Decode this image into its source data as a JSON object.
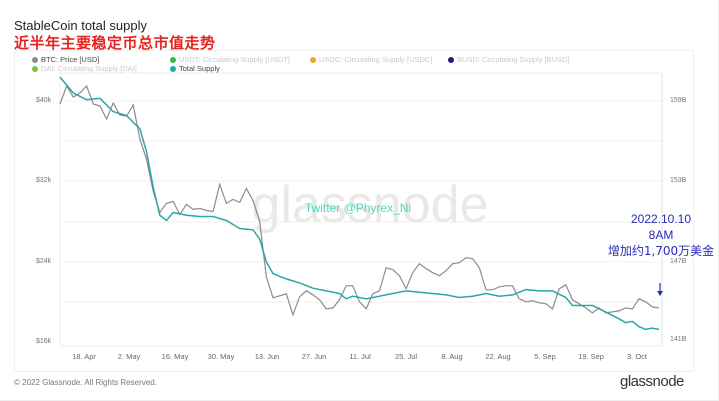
{
  "header": {
    "title": "StableCoin total supply",
    "subtitle": "近半年主要稳定币总市值走势"
  },
  "legend": [
    {
      "label": "BTC: Price [USD]",
      "color": "#8c8c8c",
      "active": true
    },
    {
      "label": "USDT: Circulating Supply [USDT]",
      "color": "#39b54a",
      "active": false
    },
    {
      "label": "USDC: Circulating Supply [USDC]",
      "color": "#f0a820",
      "active": false
    },
    {
      "label": "BUSD: Circulating Supply [BUSD]",
      "color": "#1a1a8c",
      "active": false
    },
    {
      "label": "DAI: Circulating Supply [DAI]",
      "color": "#7dc242",
      "active": false
    },
    {
      "label": "Total Supply",
      "color": "#2aa7a7",
      "active": true
    }
  ],
  "watermark": "glassnode",
  "overlay_text": "Twitter @Phyrex_Ni",
  "annotation": {
    "line1": "2022.10.10",
    "line2": "8AM",
    "line3": "增加约1,700万美金",
    "arrow": "down-arrow-icon"
  },
  "footer": {
    "copyright": "© 2022 Glassnode. All Rights Reserved.",
    "brand": "glassnode"
  },
  "chart_data": {
    "type": "line",
    "title": "StableCoin total supply",
    "subtitle": "近半年主要稳定币总市值走势",
    "x_tick_labels": [
      "18. Apr",
      "2. May",
      "16. May",
      "30. May",
      "13. Jun",
      "27. Jun",
      "11. Jul",
      "25. Jul",
      "8. Aug",
      "22. Aug",
      "5. Sep",
      "19. Sep",
      "3. Oct"
    ],
    "y_left": {
      "label": "BTC Price (USD)",
      "ticks": [
        "$16k",
        "$24k",
        "$32k",
        "$40k"
      ],
      "range": [
        16000,
        43000
      ]
    },
    "y_right": {
      "label": "Total Supply",
      "ticks": [
        "141B",
        "147B",
        "153B",
        "159B"
      ],
      "range": [
        141000000000,
        161000000000
      ]
    },
    "grid": true,
    "legend_position": "top",
    "x_range": [
      "2022-04-12",
      "2022-10-10"
    ],
    "series": [
      {
        "name": "BTC: Price [USD]",
        "axis": "left",
        "color": "#8c8c8c",
        "x": [
          "04-12",
          "04-14",
          "04-16",
          "04-18",
          "04-20",
          "04-22",
          "04-24",
          "04-26",
          "04-28",
          "04-30",
          "05-02",
          "05-04",
          "05-06",
          "05-08",
          "05-10",
          "05-12",
          "05-14",
          "05-16",
          "05-18",
          "05-20",
          "05-22",
          "05-24",
          "05-26",
          "05-28",
          "05-30",
          "06-01",
          "06-03",
          "06-05",
          "06-07",
          "06-09",
          "06-11",
          "06-13",
          "06-15",
          "06-17",
          "06-19",
          "06-21",
          "06-23",
          "06-25",
          "06-27",
          "06-29",
          "07-01",
          "07-03",
          "07-05",
          "07-07",
          "07-09",
          "07-11",
          "07-13",
          "07-15",
          "07-17",
          "07-19",
          "07-21",
          "07-23",
          "07-25",
          "07-27",
          "07-29",
          "07-31",
          "08-02",
          "08-04",
          "08-06",
          "08-08",
          "08-10",
          "08-12",
          "08-14",
          "08-16",
          "08-18",
          "08-20",
          "08-22",
          "08-24",
          "08-26",
          "08-28",
          "08-30",
          "09-01",
          "09-03",
          "09-05",
          "09-07",
          "09-09",
          "09-11",
          "09-13",
          "09-15",
          "09-17",
          "09-19",
          "09-21",
          "09-23",
          "09-25",
          "09-27",
          "09-29",
          "10-01",
          "10-03",
          "10-05",
          "10-07",
          "10-09"
        ],
        "values": [
          39700,
          41500,
          40400,
          40800,
          41500,
          39700,
          39500,
          38200,
          39800,
          38600,
          38500,
          39600,
          36200,
          34200,
          31000,
          28900,
          29800,
          30000,
          28700,
          29700,
          29200,
          29300,
          29100,
          29000,
          31700,
          29800,
          30200,
          29900,
          31300,
          30100,
          28000,
          22500,
          20400,
          20600,
          20800,
          18700,
          20500,
          21100,
          20700,
          20200,
          19300,
          19400,
          20200,
          21600,
          21600,
          20000,
          19300,
          20800,
          21100,
          23400,
          23200,
          22600,
          21300,
          22900,
          23800,
          23300,
          22900,
          22600,
          23100,
          23800,
          23900,
          24400,
          24300,
          23400,
          21200,
          21200,
          21500,
          21600,
          21600,
          20300,
          20000,
          20100,
          19900,
          19800,
          19300,
          21300,
          21700,
          20200,
          19800,
          19400,
          18900,
          19400,
          18900,
          19000,
          19100,
          19400,
          19300,
          20300,
          20000,
          19500,
          19400
        ]
      },
      {
        "name": "Total Supply",
        "axis": "right",
        "color": "#2aa7a7",
        "x": [
          "04-12",
          "04-16",
          "04-20",
          "04-24",
          "04-28",
          "05-02",
          "05-06",
          "05-08",
          "05-10",
          "05-12",
          "05-14",
          "05-16",
          "05-20",
          "05-24",
          "05-28",
          "06-01",
          "06-05",
          "06-09",
          "06-11",
          "06-13",
          "06-15",
          "06-17",
          "06-19",
          "06-23",
          "06-27",
          "07-01",
          "07-05",
          "07-07",
          "07-09",
          "07-13",
          "07-17",
          "07-21",
          "07-25",
          "07-29",
          "08-02",
          "08-06",
          "08-10",
          "08-14",
          "08-18",
          "08-22",
          "08-26",
          "08-30",
          "09-03",
          "09-07",
          "09-11",
          "09-13",
          "09-15",
          "09-19",
          "09-23",
          "09-27",
          "09-29",
          "10-01",
          "10-03",
          "10-05",
          "10-07",
          "10-09"
        ],
        "values": [
          160800,
          159600,
          159100,
          159200,
          158200,
          157900,
          156900,
          155200,
          152500,
          150400,
          150000,
          150600,
          150400,
          150300,
          150300,
          150000,
          149400,
          149300,
          148600,
          146900,
          146000,
          145800,
          145600,
          145300,
          144900,
          144700,
          144500,
          144100,
          144300,
          144100,
          144300,
          144500,
          144700,
          144600,
          144500,
          144400,
          144200,
          144300,
          144500,
          144300,
          144400,
          144800,
          144700,
          144700,
          144200,
          143600,
          143600,
          143600,
          143100,
          142600,
          142300,
          142400,
          142000,
          141800,
          141900,
          141800
        ]
      }
    ]
  }
}
